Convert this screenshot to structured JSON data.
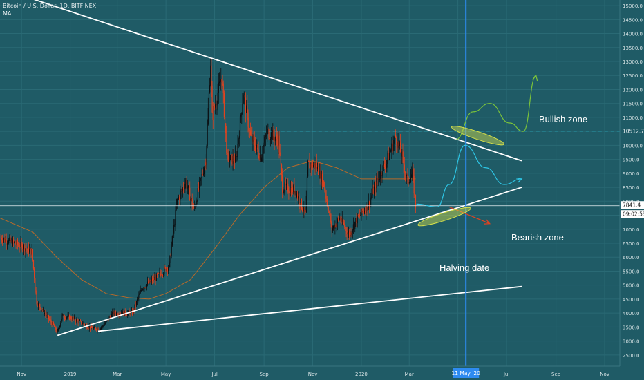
{
  "header": {
    "symbol": "Bitcoin / U.S. Dollar, 1D, BITFINEX",
    "indicator": "MA"
  },
  "annotations": {
    "bullish": "Bullish zone",
    "bearish": "Bearish zone",
    "halving": "Halving date"
  },
  "colors": {
    "background": "#1f5b66",
    "candle_up": "#0b0f12",
    "candle_down": "#e2431f",
    "ma": "#b86a2a",
    "trendline": "#ffffff",
    "resistance": "#22c4dc",
    "halving_line": "#2e8bf0",
    "ellipse": "#d6e04a",
    "bull_path": "#7cc43a",
    "alt_path": "#2ec6e6",
    "bear_arrow": "#e2431f"
  },
  "chart_data": {
    "type": "candlestick",
    "symbol": "BTCUSD",
    "timeframe": "1D",
    "y_axis": {
      "ticks": [
        2500,
        3000,
        3500,
        4000,
        4500,
        5000,
        5500,
        6000,
        6500,
        7000,
        7500,
        8000,
        8500,
        9000,
        9500,
        10000,
        10500,
        11000,
        11500,
        12000,
        12500,
        13000,
        13500,
        14000,
        14500,
        15000
      ],
      "tick_labels": [
        "2500.0",
        "3000.0",
        "3500.0",
        "4000.0",
        "4500.0",
        "5000.0",
        "5500.0",
        "6000.0",
        "6500.0",
        "7000.0",
        "7500.0",
        "8000.0",
        "8500.0",
        "9000.0",
        "9500.0",
        "10000.0",
        "10500.0",
        "11000.0",
        "11500.0",
        "12000.0",
        "12500.0",
        "13000.0",
        "13500.0",
        "14000.0",
        "14500.0",
        "15000.0"
      ],
      "range": [
        2100,
        15200
      ]
    },
    "x_axis": {
      "range_dates": [
        "2018-10-05",
        "2020-11-20"
      ],
      "ticks": [
        {
          "label": "Nov",
          "date": "2018-11-01"
        },
        {
          "label": "2019",
          "date": "2019-01-01"
        },
        {
          "label": "Mar",
          "date": "2019-03-01"
        },
        {
          "label": "May",
          "date": "2019-05-01"
        },
        {
          "label": "Jul",
          "date": "2019-07-01"
        },
        {
          "label": "Sep",
          "date": "2019-09-01"
        },
        {
          "label": "Nov",
          "date": "2019-11-01"
        },
        {
          "label": "2020",
          "date": "2020-01-01"
        },
        {
          "label": "Mar",
          "date": "2020-03-01"
        },
        {
          "label": "May",
          "date": "2020-05-01"
        },
        {
          "label": "Jul",
          "date": "2020-07-01"
        },
        {
          "label": "Sep",
          "date": "2020-09-01"
        },
        {
          "label": "Nov",
          "date": "2020-11-01"
        }
      ]
    },
    "price_path": [
      [
        "2018-10-05",
        6700
      ],
      [
        "2018-11-01",
        6400
      ],
      [
        "2018-11-14",
        6200
      ],
      [
        "2018-11-20",
        4400
      ],
      [
        "2018-12-10",
        3600
      ],
      [
        "2018-12-16",
        3300
      ],
      [
        "2018-12-22",
        3900
      ],
      [
        "2019-01-05",
        3800
      ],
      [
        "2019-01-28",
        3450
      ],
      [
        "2019-02-08",
        3450
      ],
      [
        "2019-02-24",
        4000
      ],
      [
        "2019-03-20",
        4000
      ],
      [
        "2019-04-01",
        4900
      ],
      [
        "2019-04-20",
        5300
      ],
      [
        "2019-05-05",
        5700
      ],
      [
        "2019-05-15",
        8000
      ],
      [
        "2019-05-26",
        8700
      ],
      [
        "2019-06-05",
        7700
      ],
      [
        "2019-06-20",
        9500
      ],
      [
        "2019-06-26",
        13000
      ],
      [
        "2019-06-28",
        11000
      ],
      [
        "2019-07-10",
        12500
      ],
      [
        "2019-07-17",
        9500
      ],
      [
        "2019-07-28",
        9500
      ],
      [
        "2019-08-06",
        11900
      ],
      [
        "2019-08-15",
        10300
      ],
      [
        "2019-08-28",
        9600
      ],
      [
        "2019-09-05",
        10500
      ],
      [
        "2019-09-19",
        10200
      ],
      [
        "2019-09-24",
        8500
      ],
      [
        "2019-10-10",
        8400
      ],
      [
        "2019-10-23",
        7500
      ],
      [
        "2019-10-26",
        9300
      ],
      [
        "2019-11-05",
        9300
      ],
      [
        "2019-11-15",
        8600
      ],
      [
        "2019-11-25",
        7000
      ],
      [
        "2019-12-05",
        7400
      ],
      [
        "2019-12-17",
        6800
      ],
      [
        "2019-12-25",
        7300
      ],
      [
        "2020-01-10",
        7900
      ],
      [
        "2020-01-20",
        8700
      ],
      [
        "2020-02-01",
        9400
      ],
      [
        "2020-02-13",
        10300
      ],
      [
        "2020-02-20",
        9700
      ],
      [
        "2020-02-28",
        8700
      ],
      [
        "2020-03-05",
        9000
      ],
      [
        "2020-03-09",
        7841.4
      ]
    ],
    "candles_rendering": "Daily OHLC candles are rendered as marks following the price_path above.",
    "moving_average": [
      [
        "2018-10-05",
        7400
      ],
      [
        "2018-11-15",
        6900
      ],
      [
        "2018-12-15",
        6000
      ],
      [
        "2019-01-15",
        5200
      ],
      [
        "2019-02-15",
        4700
      ],
      [
        "2019-03-15",
        4550
      ],
      [
        "2019-04-10",
        4500
      ],
      [
        "2019-05-01",
        4700
      ],
      [
        "2019-06-01",
        5200
      ],
      [
        "2019-07-01",
        6300
      ],
      [
        "2019-08-01",
        7500
      ],
      [
        "2019-09-01",
        8500
      ],
      [
        "2019-10-01",
        9200
      ],
      [
        "2019-11-01",
        9450
      ],
      [
        "2019-12-01",
        9200
      ],
      [
        "2020-01-01",
        8800
      ],
      [
        "2020-02-01",
        8800
      ],
      [
        "2020-03-09",
        8800
      ]
    ],
    "current_price": {
      "value": 7841.4,
      "label": "7841.4",
      "countdown": "09:02:53"
    },
    "resistance_level": {
      "value": 10512.7,
      "label": "10512.7"
    },
    "trendlines": [
      {
        "name": "descending",
        "points": [
          [
            "2018-10-18",
            15500
          ],
          [
            "2020-07-20",
            9450
          ]
        ]
      },
      {
        "name": "ascending",
        "points": [
          [
            "2018-12-16",
            3200
          ],
          [
            "2020-07-20",
            8500
          ]
        ]
      },
      {
        "name": "long-ascending",
        "points": [
          [
            "2019-02-05",
            3350
          ],
          [
            "2020-07-20",
            4950
          ]
        ]
      }
    ],
    "halving": {
      "date": "2020-05-11",
      "label": "11 May '20"
    },
    "projections": {
      "bullish": [
        [
          "2020-04-28",
          10200
        ],
        [
          "2020-05-20",
          11200
        ],
        [
          "2020-06-10",
          11500
        ],
        [
          "2020-07-05",
          10800
        ],
        [
          "2020-07-22",
          10500
        ],
        [
          "2020-08-07",
          12500
        ]
      ],
      "alternative": [
        [
          "2020-03-10",
          7900
        ],
        [
          "2020-04-05",
          7800
        ],
        [
          "2020-04-20",
          8600
        ],
        [
          "2020-05-10",
          10000
        ],
        [
          "2020-06-05",
          9200
        ],
        [
          "2020-06-28",
          8600
        ],
        [
          "2020-07-20",
          8800
        ]
      ],
      "bearish": [
        [
          "2020-04-20",
          7800
        ],
        [
          "2020-06-10",
          7200
        ]
      ]
    },
    "zones": [
      {
        "label": "Bullish zone",
        "center_date": "2020-05-26",
        "center_value": 10350
      },
      {
        "label": "Bearish zone",
        "center_date": "2020-04-14",
        "center_value": 7450
      }
    ],
    "legend": "top-left"
  }
}
